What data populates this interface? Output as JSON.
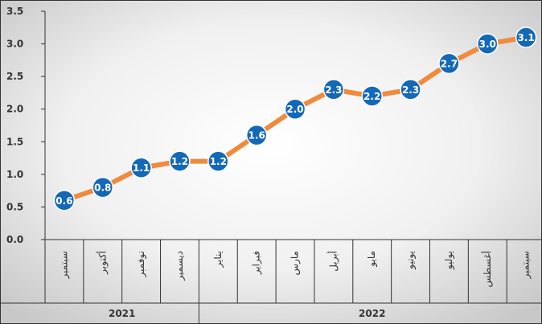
{
  "chart_data": {
    "type": "line",
    "categories": [
      "سبتمبر",
      "أكتوبر",
      "نوفمبر",
      "ديسمبر",
      "يناير",
      "فبراير",
      "مارس",
      "أبريل",
      "مايو",
      "يونيو",
      "يوليو",
      "أغسطس",
      "سبتمبر"
    ],
    "values": [
      0.6,
      0.8,
      1.1,
      1.2,
      1.2,
      1.6,
      2.0,
      2.3,
      2.2,
      2.3,
      2.7,
      3.0,
      3.1
    ],
    "data_labels": [
      "0.6",
      "0.8",
      "1.1",
      "1.2",
      "1.2",
      "1.6",
      "2.0",
      "2.3",
      "2.2",
      "2.3",
      "2.7",
      "3.0",
      "3.1"
    ],
    "year_groups": [
      {
        "label": "2021",
        "count": 4
      },
      {
        "label": "2022",
        "count": 9
      }
    ],
    "y_ticks": [
      "0.0",
      "0.5",
      "1.0",
      "1.5",
      "2.0",
      "2.5",
      "3.0",
      "3.5"
    ],
    "ylim": [
      0,
      3.5
    ],
    "grid": false,
    "legend": "none",
    "colors": {
      "line": "#F08A3C",
      "marker": "#1468B8",
      "marker_edge": "#ffffff",
      "label": "#ffffff",
      "axis": "#333333"
    }
  }
}
